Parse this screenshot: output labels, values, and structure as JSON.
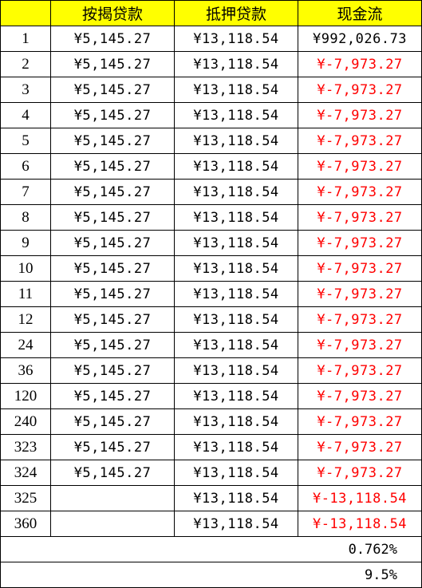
{
  "columns": [
    "",
    "按揭贷款",
    "抵押贷款",
    "现金流"
  ],
  "rows": [
    {
      "period": "1",
      "mortgage_installment": "¥5,145.27",
      "mortgage_collateral": "¥13,118.54",
      "cash_flow": "¥992,026.73",
      "negative": false
    },
    {
      "period": "2",
      "mortgage_installment": "¥5,145.27",
      "mortgage_collateral": "¥13,118.54",
      "cash_flow": "¥-7,973.27",
      "negative": true
    },
    {
      "period": "3",
      "mortgage_installment": "¥5,145.27",
      "mortgage_collateral": "¥13,118.54",
      "cash_flow": "¥-7,973.27",
      "negative": true
    },
    {
      "period": "4",
      "mortgage_installment": "¥5,145.27",
      "mortgage_collateral": "¥13,118.54",
      "cash_flow": "¥-7,973.27",
      "negative": true
    },
    {
      "period": "5",
      "mortgage_installment": "¥5,145.27",
      "mortgage_collateral": "¥13,118.54",
      "cash_flow": "¥-7,973.27",
      "negative": true
    },
    {
      "period": "6",
      "mortgage_installment": "¥5,145.27",
      "mortgage_collateral": "¥13,118.54",
      "cash_flow": "¥-7,973.27",
      "negative": true
    },
    {
      "period": "7",
      "mortgage_installment": "¥5,145.27",
      "mortgage_collateral": "¥13,118.54",
      "cash_flow": "¥-7,973.27",
      "negative": true
    },
    {
      "period": "8",
      "mortgage_installment": "¥5,145.27",
      "mortgage_collateral": "¥13,118.54",
      "cash_flow": "¥-7,973.27",
      "negative": true
    },
    {
      "period": "9",
      "mortgage_installment": "¥5,145.27",
      "mortgage_collateral": "¥13,118.54",
      "cash_flow": "¥-7,973.27",
      "negative": true
    },
    {
      "period": "10",
      "mortgage_installment": "¥5,145.27",
      "mortgage_collateral": "¥13,118.54",
      "cash_flow": "¥-7,973.27",
      "negative": true
    },
    {
      "period": "11",
      "mortgage_installment": "¥5,145.27",
      "mortgage_collateral": "¥13,118.54",
      "cash_flow": "¥-7,973.27",
      "negative": true
    },
    {
      "period": "12",
      "mortgage_installment": "¥5,145.27",
      "mortgage_collateral": "¥13,118.54",
      "cash_flow": "¥-7,973.27",
      "negative": true
    },
    {
      "period": "24",
      "mortgage_installment": "¥5,145.27",
      "mortgage_collateral": "¥13,118.54",
      "cash_flow": "¥-7,973.27",
      "negative": true
    },
    {
      "period": "36",
      "mortgage_installment": "¥5,145.27",
      "mortgage_collateral": "¥13,118.54",
      "cash_flow": "¥-7,973.27",
      "negative": true
    },
    {
      "period": "120",
      "mortgage_installment": "¥5,145.27",
      "mortgage_collateral": "¥13,118.54",
      "cash_flow": "¥-7,973.27",
      "negative": true
    },
    {
      "period": "240",
      "mortgage_installment": "¥5,145.27",
      "mortgage_collateral": "¥13,118.54",
      "cash_flow": "¥-7,973.27",
      "negative": true
    },
    {
      "period": "323",
      "mortgage_installment": "¥5,145.27",
      "mortgage_collateral": "¥13,118.54",
      "cash_flow": "¥-7,973.27",
      "negative": true
    },
    {
      "period": "324",
      "mortgage_installment": "¥5,145.27",
      "mortgage_collateral": "¥13,118.54",
      "cash_flow": "¥-7,973.27",
      "negative": true
    },
    {
      "period": "325",
      "mortgage_installment": "",
      "mortgage_collateral": "¥13,118.54",
      "cash_flow": "¥-13,118.54",
      "negative": true
    },
    {
      "period": "360",
      "mortgage_installment": "",
      "mortgage_collateral": "¥13,118.54",
      "cash_flow": "¥-13,118.54",
      "negative": true
    }
  ],
  "summary": [
    "0.762%",
    "9.5%"
  ],
  "colors": {
    "header_bg": "#ffff00",
    "negative_text": "#ff0000",
    "text": "#000000",
    "grid": "#000000"
  }
}
